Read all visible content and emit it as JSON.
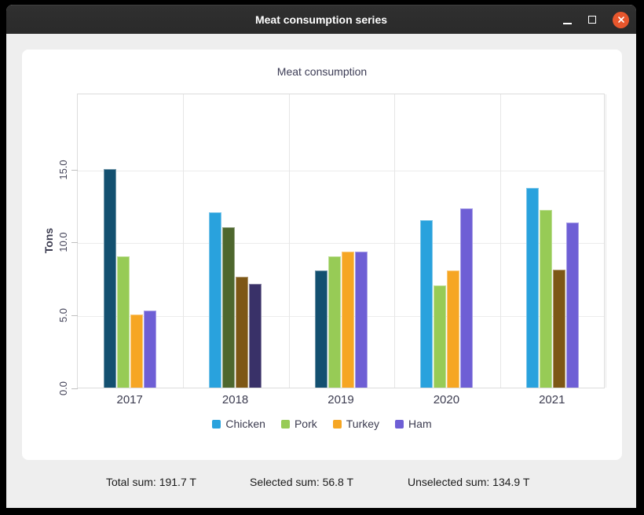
{
  "window": {
    "title": "Meat consumption series"
  },
  "chart_data": {
    "type": "bar",
    "title": "Meat consumption",
    "xlabel": "",
    "ylabel": "Tons",
    "categories": [
      "2017",
      "2018",
      "2019",
      "2020",
      "2021"
    ],
    "yticks": [
      0,
      5,
      10,
      15
    ],
    "ytick_labels": [
      "0.0",
      "5.0",
      "10.0",
      "15.0"
    ],
    "ylim": [
      0,
      20.2
    ],
    "grid": true,
    "legend_position": "bottom",
    "series": [
      {
        "name": "Chicken",
        "color": "#29a2dd",
        "selected_color": "#135070",
        "values": [
          15.0,
          12.0,
          8.0,
          11.5,
          13.7
        ],
        "selected": [
          true,
          false,
          true,
          false,
          false
        ]
      },
      {
        "name": "Pork",
        "color": "#97cb56",
        "selected_color": "#4e672e",
        "values": [
          9.0,
          11.0,
          9.0,
          7.0,
          12.2
        ],
        "selected": [
          false,
          true,
          false,
          false,
          false
        ]
      },
      {
        "name": "Turkey",
        "color": "#f6a623",
        "selected_color": "#7d5716",
        "values": [
          5.0,
          7.6,
          9.3,
          8.0,
          8.1
        ],
        "selected": [
          false,
          true,
          false,
          false,
          true
        ]
      },
      {
        "name": "Ham",
        "color": "#6e5fd5",
        "selected_color": "#393168",
        "values": [
          5.3,
          7.1,
          9.3,
          12.3,
          11.3
        ],
        "selected": [
          false,
          true,
          false,
          false,
          false
        ]
      }
    ]
  },
  "footer": {
    "total": "Total sum: 191.7 T",
    "selected": "Selected sum: 56.8 T",
    "unselected": "Unselected sum: 134.9 T"
  }
}
